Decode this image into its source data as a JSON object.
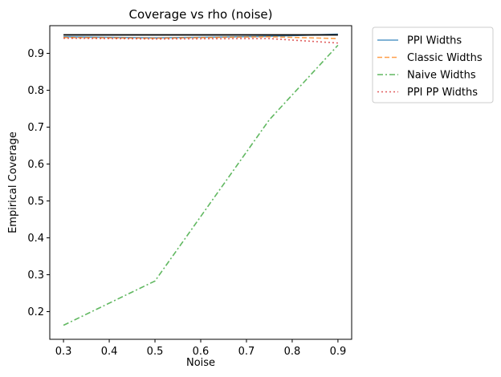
{
  "chart_data": {
    "type": "line",
    "title": "Coverage vs rho (noise)",
    "xlabel": "Noise",
    "ylabel": "Empirical Coverage",
    "xlim": [
      0.27,
      0.93
    ],
    "ylim": [
      0.125,
      0.975
    ],
    "xticks": [
      0.3,
      0.4,
      0.5,
      0.6,
      0.7,
      0.8,
      0.9
    ],
    "xtick_labels": [
      "0.3",
      "0.4",
      "0.5",
      "0.6",
      "0.7",
      "0.8",
      "0.9"
    ],
    "yticks": [
      0.2,
      0.3,
      0.4,
      0.5,
      0.6,
      0.7,
      0.8,
      0.9
    ],
    "ytick_labels": [
      "0.2",
      "0.3",
      "0.4",
      "0.5",
      "0.6",
      "0.7",
      "0.8",
      "0.9"
    ],
    "grid": false,
    "legend_position": "outside-upper-right",
    "series": [
      {
        "name": "PPI Widths",
        "color": "#1f77b4",
        "dash": "solid",
        "x": [
          0.3,
          0.5,
          0.75,
          0.9
        ],
        "y": [
          0.945,
          0.942,
          0.946,
          0.952
        ]
      },
      {
        "name": "Classic Widths",
        "color": "#ff7f0e",
        "dash": "dashed",
        "x": [
          0.3,
          0.5,
          0.75,
          0.9
        ],
        "y": [
          0.943,
          0.941,
          0.945,
          0.94
        ]
      },
      {
        "name": "Naive Widths",
        "color": "#2ca02c",
        "dash": "dashdot",
        "x": [
          0.3,
          0.5,
          0.75,
          0.9
        ],
        "y": [
          0.163,
          0.283,
          0.72,
          0.922
        ]
      },
      {
        "name": "PPI PP Widths",
        "color": "#d62728",
        "dash": "dotted",
        "x": [
          0.3,
          0.5,
          0.75,
          0.9
        ],
        "y": [
          0.941,
          0.939,
          0.94,
          0.928
        ]
      }
    ],
    "reference_line": {
      "y": 0.95,
      "color": "#000000"
    }
  }
}
